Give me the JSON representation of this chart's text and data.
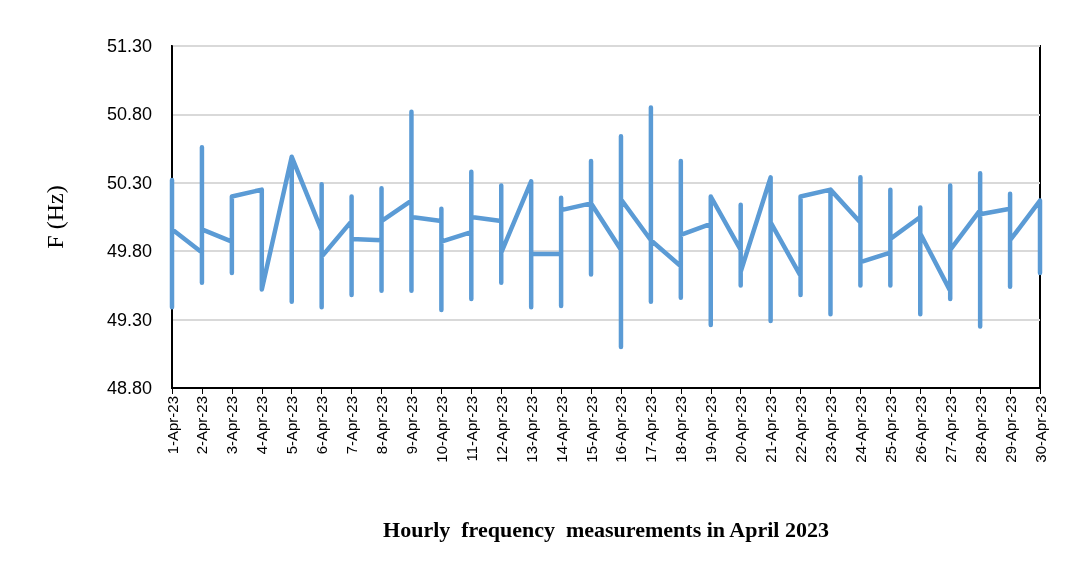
{
  "chart_data": {
    "type": "line",
    "xlabel": "Hourly  frequency  measurements in April 2023",
    "ylabel": "F (Hz)",
    "x": [
      "2023-04-01",
      "2023-04-01",
      "2023-04-01",
      "2023-04-02",
      "2023-04-02",
      "2023-04-02",
      "2023-04-02",
      "2023-04-03",
      "2023-04-03",
      "2023-04-03",
      "2023-04-03",
      "2023-04-04",
      "2023-04-04",
      "2023-04-04",
      "2023-04-05",
      "2023-04-05",
      "2023-04-05",
      "2023-04-06",
      "2023-04-06",
      "2023-04-06",
      "2023-04-06",
      "2023-04-07",
      "2023-04-07",
      "2023-04-07",
      "2023-04-07",
      "2023-04-08",
      "2023-04-08",
      "2023-04-08",
      "2023-04-08",
      "2023-04-09",
      "2023-04-09",
      "2023-04-09",
      "2023-04-09",
      "2023-04-10",
      "2023-04-10",
      "2023-04-10",
      "2023-04-10",
      "2023-04-11",
      "2023-04-11",
      "2023-04-11",
      "2023-04-11",
      "2023-04-12",
      "2023-04-12",
      "2023-04-12",
      "2023-04-12",
      "2023-04-13",
      "2023-04-13",
      "2023-04-13",
      "2023-04-14",
      "2023-04-14",
      "2023-04-14",
      "2023-04-14",
      "2023-04-15",
      "2023-04-15",
      "2023-04-15",
      "2023-04-15",
      "2023-04-16",
      "2023-04-16",
      "2023-04-16",
      "2023-04-16",
      "2023-04-17",
      "2023-04-17",
      "2023-04-17",
      "2023-04-17",
      "2023-04-18",
      "2023-04-18",
      "2023-04-18",
      "2023-04-18",
      "2023-04-19",
      "2023-04-19",
      "2023-04-19",
      "2023-04-19",
      "2023-04-20",
      "2023-04-20",
      "2023-04-20",
      "2023-04-20",
      "2023-04-21",
      "2023-04-21",
      "2023-04-21",
      "2023-04-22",
      "2023-04-22",
      "2023-04-22",
      "2023-04-22",
      "2023-04-23",
      "2023-04-23",
      "2023-04-23",
      "2023-04-24",
      "2023-04-24",
      "2023-04-24",
      "2023-04-24",
      "2023-04-25",
      "2023-04-25",
      "2023-04-25",
      "2023-04-25",
      "2023-04-26",
      "2023-04-26",
      "2023-04-26",
      "2023-04-26",
      "2023-04-27",
      "2023-04-27",
      "2023-04-27",
      "2023-04-27",
      "2023-04-28",
      "2023-04-28",
      "2023-04-28",
      "2023-04-28",
      "2023-04-29",
      "2023-04-29",
      "2023-04-29",
      "2023-04-29",
      "2023-04-30",
      "2023-04-30",
      "2023-04-30"
    ],
    "series": [
      {
        "color": "#5b9bd5",
        "values": [
          50.32,
          49.39,
          49.96,
          49.79,
          50.56,
          49.57,
          49.96,
          49.87,
          49.64,
          50.2,
          50.2,
          50.25,
          49.52,
          49.52,
          50.49,
          49.43,
          50.49,
          49.95,
          50.29,
          49.39,
          49.76,
          50.02,
          50.2,
          49.48,
          49.89,
          49.88,
          50.26,
          49.51,
          50.02,
          50.17,
          50.82,
          49.51,
          50.05,
          50.02,
          50.11,
          49.37,
          49.87,
          49.94,
          50.38,
          49.45,
          50.05,
          50.02,
          50.28,
          49.57,
          49.79,
          50.31,
          49.39,
          49.78,
          49.78,
          50.19,
          49.4,
          50.1,
          50.15,
          50.46,
          49.63,
          50.15,
          49.81,
          50.64,
          49.1,
          50.18,
          49.88,
          50.85,
          49.43,
          49.88,
          49.69,
          50.46,
          49.46,
          49.92,
          50.0,
          50.2,
          49.26,
          50.2,
          49.81,
          50.14,
          49.55,
          49.65,
          50.34,
          49.29,
          50.01,
          49.62,
          50.2,
          49.48,
          50.2,
          50.25,
          49.34,
          50.25,
          50.01,
          50.34,
          49.55,
          49.72,
          49.79,
          50.25,
          49.55,
          49.89,
          50.05,
          50.12,
          49.34,
          49.93,
          49.51,
          50.28,
          49.45,
          49.81,
          50.1,
          50.37,
          49.25,
          50.07,
          50.11,
          50.22,
          49.54,
          49.88,
          50.17,
          49.64,
          50.17
        ]
      }
    ],
    "xlim": [
      "2023-04-01",
      "2023-04-30"
    ],
    "xticks": [
      {
        "value": "2023-04-01",
        "label": "1-Apr-23"
      },
      {
        "value": "2023-04-02",
        "label": "2-Apr-23"
      },
      {
        "value": "2023-04-03",
        "label": "3-Apr-23"
      },
      {
        "value": "2023-04-04",
        "label": "4-Apr-23"
      },
      {
        "value": "2023-04-05",
        "label": "5-Apr-23"
      },
      {
        "value": "2023-04-06",
        "label": "6-Apr-23"
      },
      {
        "value": "2023-04-07",
        "label": "7-Apr-23"
      },
      {
        "value": "2023-04-08",
        "label": "8-Apr-23"
      },
      {
        "value": "2023-04-09",
        "label": "9-Apr-23"
      },
      {
        "value": "2023-04-10",
        "label": "10-Apr-23"
      },
      {
        "value": "2023-04-11",
        "label": "11-Apr-23"
      },
      {
        "value": "2023-04-12",
        "label": "12-Apr-23"
      },
      {
        "value": "2023-04-13",
        "label": "13-Apr-23"
      },
      {
        "value": "2023-04-14",
        "label": "14-Apr-23"
      },
      {
        "value": "2023-04-15",
        "label": "15-Apr-23"
      },
      {
        "value": "2023-04-16",
        "label": "16-Apr-23"
      },
      {
        "value": "2023-04-17",
        "label": "17-Apr-23"
      },
      {
        "value": "2023-04-18",
        "label": "18-Apr-23"
      },
      {
        "value": "2023-04-19",
        "label": "19-Apr-23"
      },
      {
        "value": "2023-04-20",
        "label": "20-Apr-23"
      },
      {
        "value": "2023-04-21",
        "label": "21-Apr-23"
      },
      {
        "value": "2023-04-22",
        "label": "22-Apr-23"
      },
      {
        "value": "2023-04-23",
        "label": "23-Apr-23"
      },
      {
        "value": "2023-04-24",
        "label": "24-Apr-23"
      },
      {
        "value": "2023-04-25",
        "label": "25-Apr-23"
      },
      {
        "value": "2023-04-26",
        "label": "26-Apr-23"
      },
      {
        "value": "2023-04-27",
        "label": "27-Apr-23"
      },
      {
        "value": "2023-04-28",
        "label": "28-Apr-23"
      },
      {
        "value": "2023-04-29",
        "label": "29-Apr-23"
      },
      {
        "value": "2023-04-30",
        "label": "30-Apr-23"
      }
    ],
    "ylim": [
      48.8,
      51.3
    ],
    "yticks": [
      {
        "value": 48.8,
        "label": "48.80"
      },
      {
        "value": 49.3,
        "label": "49.30"
      },
      {
        "value": 49.8,
        "label": "49.80"
      },
      {
        "value": 50.3,
        "label": "50.30"
      },
      {
        "value": 50.8,
        "label": "50.80"
      },
      {
        "value": 51.3,
        "label": "51.30"
      }
    ],
    "grid": "y",
    "marker": "none",
    "line_style": "solid"
  }
}
